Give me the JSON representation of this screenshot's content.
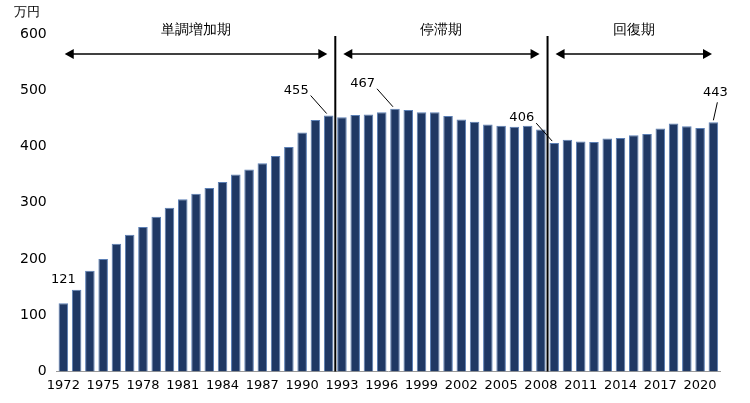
{
  "chart_data": {
    "type": "bar",
    "ylabel": "万円",
    "x": [
      1972,
      1973,
      1974,
      1975,
      1976,
      1977,
      1978,
      1979,
      1980,
      1981,
      1982,
      1983,
      1984,
      1985,
      1986,
      1987,
      1988,
      1989,
      1990,
      1991,
      1992,
      1993,
      1994,
      1995,
      1996,
      1997,
      1998,
      1999,
      2000,
      2001,
      2002,
      2003,
      2004,
      2005,
      2006,
      2007,
      2008,
      2009,
      2010,
      2011,
      2012,
      2013,
      2014,
      2015,
      2016,
      2017,
      2018,
      2019,
      2020,
      2021
    ],
    "values": [
      121,
      145,
      179,
      200,
      227,
      243,
      257,
      275,
      291,
      306,
      316,
      326,
      337,
      350,
      359,
      370,
      383,
      399,
      425,
      447,
      455,
      452,
      456,
      457,
      461,
      467,
      465,
      461,
      461,
      454,
      448,
      444,
      439,
      437,
      435,
      437,
      430,
      406,
      412,
      409,
      408,
      414,
      415,
      420,
      422,
      432,
      441,
      436,
      433,
      443
    ],
    "color": "#1f3864",
    "xlim": [
      1971.5,
      2021.5
    ],
    "xticks": [
      1972,
      1975,
      1978,
      1981,
      1984,
      1987,
      1990,
      1993,
      1996,
      1999,
      2002,
      2005,
      2008,
      2011,
      2014,
      2017,
      2020
    ],
    "ylim": [
      0,
      600
    ],
    "yticks": [
      0,
      100,
      200,
      300,
      400,
      500,
      600
    ],
    "grid": false,
    "annotations": [
      {
        "x": 1972,
        "text": "121"
      },
      {
        "x": 1992,
        "text": "455"
      },
      {
        "x": 1997,
        "text": "467"
      },
      {
        "x": 2009,
        "text": "406"
      },
      {
        "x": 2021,
        "text": "443"
      }
    ],
    "periods": [
      {
        "text": "単調増加期",
        "from": 1971.5,
        "to": 1992.5
      },
      {
        "text": "停滞期",
        "from": 1992.5,
        "to": 2008.5
      },
      {
        "text": "回復期",
        "from": 2008.5,
        "to": 2021.5
      }
    ]
  }
}
